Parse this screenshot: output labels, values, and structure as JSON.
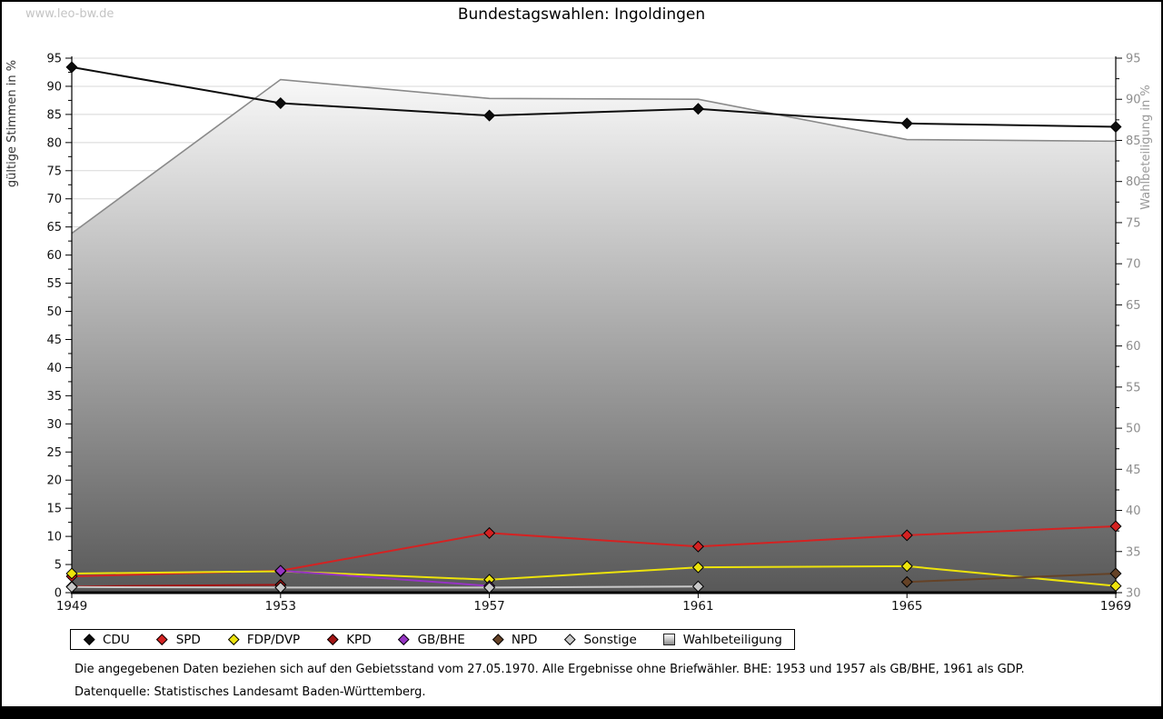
{
  "watermark": {
    "text": "www.leo-bw.de"
  },
  "header": {
    "title": "Bundestagswahlen: Ingoldingen"
  },
  "chart_data": {
    "type": "line",
    "title": "Bundestagswahlen: Ingoldingen",
    "x_categories": [
      "1949",
      "1953",
      "1957",
      "1961",
      "1965",
      "1969"
    ],
    "left_axis": {
      "label": "gültige Stimmen in %",
      "min": 0,
      "max": 95,
      "tick_step": 5,
      "minor_step": 2.5
    },
    "right_axis": {
      "label": "Wahlbeteiligung in %",
      "min": 30,
      "max": 95,
      "tick_step": 5,
      "minor_step": 2.5
    },
    "grid": true,
    "legend_position": "bottom",
    "series": [
      {
        "name": "CDU",
        "axis": "left",
        "style": "line",
        "color": "#0d0d0d",
        "values": [
          93.4,
          87.0,
          84.8,
          86.0,
          83.4,
          82.8
        ]
      },
      {
        "name": "SPD",
        "axis": "left",
        "style": "line",
        "color": "#d42222",
        "values": [
          2.9,
          3.9,
          10.6,
          8.2,
          10.2,
          11.8
        ]
      },
      {
        "name": "FDP/DVP",
        "axis": "left",
        "style": "line",
        "color": "#ede30c",
        "values": [
          3.4,
          3.8,
          2.3,
          4.5,
          4.7,
          1.2
        ]
      },
      {
        "name": "KPD",
        "axis": "left",
        "style": "line",
        "color": "#a31414",
        "values": [
          1.1,
          1.4,
          null,
          null,
          null,
          null
        ]
      },
      {
        "name": "GB/BHE",
        "axis": "left",
        "style": "line",
        "color": "#9634c4",
        "values": [
          null,
          3.9,
          1.2,
          null,
          null,
          null
        ]
      },
      {
        "name": "NPD",
        "axis": "left",
        "style": "line",
        "color": "#654226",
        "values": [
          null,
          null,
          null,
          null,
          1.9,
          3.4
        ]
      },
      {
        "name": "Sonstige",
        "axis": "left",
        "style": "line",
        "color": "#c9c9c9",
        "values": [
          1.0,
          0.9,
          0.9,
          1.1,
          null,
          null
        ]
      },
      {
        "name": "Wahlbeteiligung",
        "axis": "right",
        "style": "area",
        "color": "#8a8a8a",
        "fill_top": "#ffffff",
        "fill_bottom": "#585858",
        "values": [
          73.7,
          92.4,
          90.1,
          90.0,
          85.1,
          84.9
        ]
      }
    ]
  },
  "footer": {
    "note1": "Die angegebenen Daten beziehen sich auf den Gebietsstand vom 27.05.1970. Alle Ergebnisse ohne Briefwähler. BHE: 1953 und 1957 als GB/BHE, 1961 als GDP.",
    "note2": "Datenquelle: Statistisches Landesamt Baden-Württemberg."
  }
}
